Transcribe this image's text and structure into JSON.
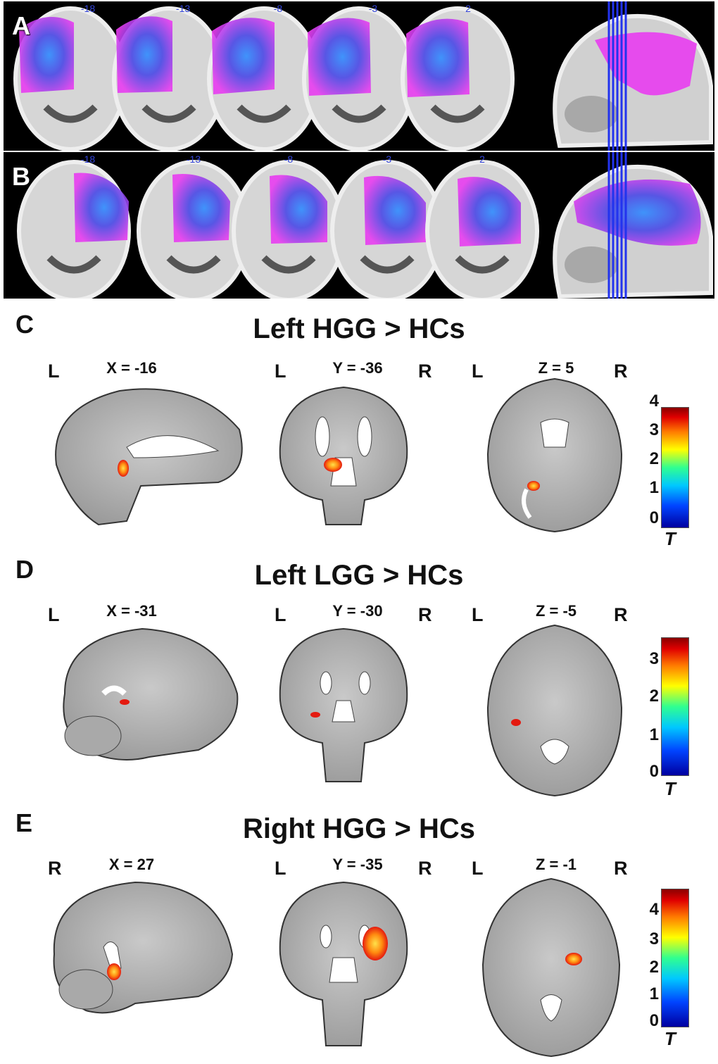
{
  "panelA": {
    "letter": "A",
    "slices": [
      "-18",
      "-13",
      "-8",
      "-3",
      "2"
    ]
  },
  "panelB": {
    "letter": "B",
    "slices": [
      "-18",
      "-13",
      "-8",
      "-3",
      "2"
    ]
  },
  "panels": [
    {
      "letter": "C",
      "title": "Left HGG > HCs",
      "views": [
        {
          "left": "L",
          "coord": "X = -16",
          "right": ""
        },
        {
          "left": "L",
          "coord": "Y = -36",
          "right": "R"
        },
        {
          "left": "L",
          "coord": "Z = 5",
          "right": "R"
        }
      ],
      "colorbar": {
        "ticks": [
          "4",
          "3",
          "2",
          "1",
          "0"
        ],
        "label": "T"
      }
    },
    {
      "letter": "D",
      "title": "Left LGG > HCs",
      "views": [
        {
          "left": "L",
          "coord": "X = -31",
          "right": ""
        },
        {
          "left": "L",
          "coord": "Y = -30",
          "right": "R"
        },
        {
          "left": "L",
          "coord": "Z = -5",
          "right": "R"
        }
      ],
      "colorbar": {
        "ticks": [
          "3",
          "2",
          "1",
          "0"
        ],
        "label": "T"
      }
    },
    {
      "letter": "E",
      "title": "Right HGG > HCs",
      "views": [
        {
          "left": "R",
          "coord": "X = 27",
          "right": ""
        },
        {
          "left": "L",
          "coord": "Y = -35",
          "right": "R"
        },
        {
          "left": "L",
          "coord": "Z = -1",
          "right": "R"
        }
      ],
      "colorbar": {
        "ticks": [
          "4",
          "3",
          "2",
          "1",
          "0"
        ],
        "label": "T"
      }
    }
  ],
  "colors": {
    "overlay_magenta": "#e83cf0",
    "overlay_blue": "#3a4fe0",
    "slice_line": "#2233ee",
    "activation_red": "#e8201a",
    "activation_yellow": "#ffd21a"
  }
}
